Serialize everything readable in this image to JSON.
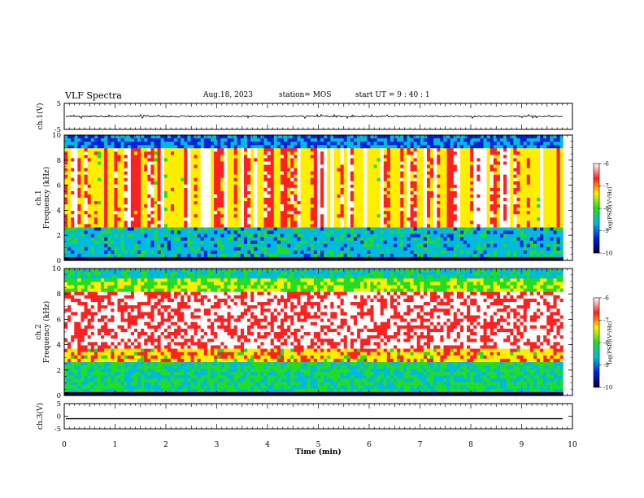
{
  "header": {
    "title": "VLF Spectra",
    "date": "Aug.18, 2023",
    "station": "station= MOS",
    "start": "start  UT =   9 : 40 : 1"
  },
  "colorbar": {
    "label": "log(PSD)(V²/Hz)",
    "ticks": [
      "-6",
      "-7",
      "-8",
      "-9",
      "-10"
    ],
    "colors": [
      "#ffffff",
      "#ff2020",
      "#ffee00",
      "#22dd22",
      "#00bbdd",
      "#0022dd",
      "#000033"
    ]
  },
  "chart_data": [
    {
      "type": "line",
      "panel": "ch1-waveform",
      "ylabel": "ch.1(V)",
      "ylim": [
        -5,
        5
      ],
      "yticks": [
        "5",
        "-5"
      ],
      "xlim": [
        0,
        10
      ],
      "series": [
        {
          "description": "near-zero waveform with small spikes",
          "level": 0
        }
      ]
    },
    {
      "type": "heatmap",
      "panel": "ch1-spectrogram",
      "ylabel": "ch.1 Frequency (kHz)",
      "ylim": [
        0,
        10
      ],
      "yticks": [
        "0",
        "2",
        "4",
        "6",
        "8",
        "10"
      ],
      "xlim": [
        0,
        10
      ],
      "zlabel": "log(PSD)(V²/Hz)",
      "zlim": [
        -10,
        -6
      ],
      "data_end_min": 9.82,
      "bands": [
        {
          "from_khz": 0.0,
          "to_khz": 0.2,
          "level": "low"
        },
        {
          "from_khz": 0.2,
          "to_khz": 2.5,
          "level": "low-moderate with horizontal lines"
        },
        {
          "from_khz": 2.5,
          "to_khz": 9.0,
          "level": "high, many vertical streaks"
        },
        {
          "from_khz": 9.0,
          "to_khz": 10.0,
          "level": "low"
        }
      ]
    },
    {
      "type": "heatmap",
      "panel": "ch2-spectrogram",
      "ylabel": "ch.2 Frequency (kHz)",
      "ylim": [
        0,
        10
      ],
      "yticks": [
        "0",
        "2",
        "4",
        "6",
        "8",
        "10"
      ],
      "xlim": [
        0,
        10
      ],
      "zlabel": "log(PSD)(V²/Hz)",
      "zlim": [
        -10,
        -6
      ],
      "data_end_min": 9.82,
      "bands": [
        {
          "from_khz": 0.0,
          "to_khz": 2.5,
          "level": "low-moderate"
        },
        {
          "from_khz": 2.5,
          "to_khz": 8.5,
          "level": "high"
        },
        {
          "from_khz": 8.5,
          "to_khz": 10.0,
          "level": "moderate-low"
        }
      ]
    },
    {
      "type": "line",
      "panel": "ch3-waveform",
      "ylabel": "ch.3(V)",
      "ylim": [
        -5,
        5
      ],
      "yticks": [
        "5",
        "0",
        "-5"
      ],
      "xlim": [
        0,
        10
      ],
      "series": [
        {
          "description": "flat line",
          "level": -1
        }
      ]
    }
  ],
  "xaxis": {
    "label": "Time  (min)",
    "ticks": [
      "0",
      "1",
      "2",
      "3",
      "4",
      "5",
      "6",
      "7",
      "8",
      "9",
      "10"
    ]
  }
}
